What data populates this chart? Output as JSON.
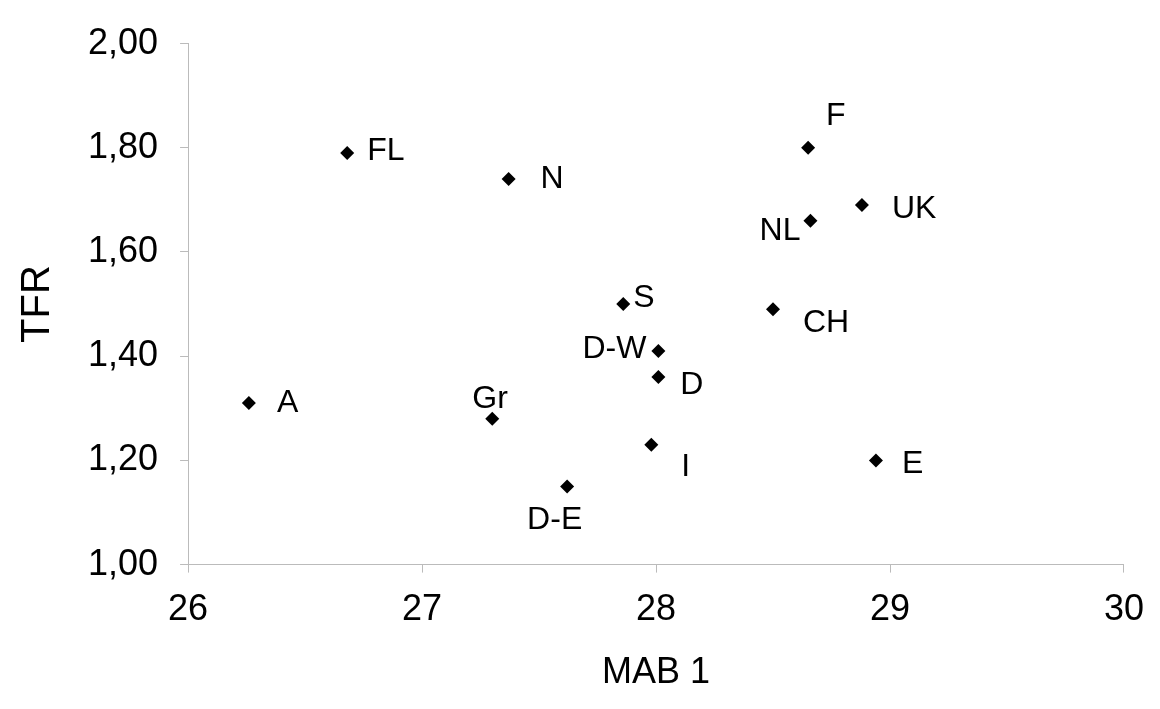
{
  "chart_data": {
    "type": "scatter",
    "xlabel": "MAB 1",
    "ylabel": "TFR",
    "x": [
      26.26,
      26.68,
      27.37,
      28.65,
      28.88,
      28.66,
      27.86,
      28.5,
      28.01,
      28.01,
      27.3,
      27.98,
      28.94,
      27.62
    ],
    "values": [
      1.31,
      1.79,
      1.74,
      1.8,
      1.69,
      1.66,
      1.5,
      1.49,
      1.41,
      1.36,
      1.28,
      1.23,
      1.2,
      1.15
    ],
    "color": "#000000",
    "marker": "diamond",
    "grid": false,
    "legend": false,
    "xlim": [
      26,
      30
    ],
    "xticks": [
      26,
      27,
      28,
      29,
      30
    ],
    "ylim": [
      1,
      2
    ],
    "yticks": [
      {
        "value": 1,
        "label": "1,00"
      },
      {
        "value": 1.2,
        "label": "1,20"
      },
      {
        "value": 1.4,
        "label": "1,40"
      },
      {
        "value": 1.6,
        "label": "1,60"
      },
      {
        "value": 1.8,
        "label": "1,80"
      },
      {
        "value": 2,
        "label": "2,00"
      }
    ],
    "annotations": [
      {
        "text": "A",
        "x": 26.26,
        "y": 1.31
      },
      {
        "text": "FL",
        "x": 26.68,
        "y": 1.79
      },
      {
        "text": "N",
        "x": 27.37,
        "y": 1.74
      },
      {
        "text": "F",
        "x": 28.65,
        "y": 1.8
      },
      {
        "text": "UK",
        "x": 28.88,
        "y": 1.69
      },
      {
        "text": "NL",
        "x": 28.66,
        "y": 1.66
      },
      {
        "text": "S",
        "x": 27.86,
        "y": 1.5
      },
      {
        "text": "CH",
        "x": 28.5,
        "y": 1.49
      },
      {
        "text": "D-W",
        "x": 28.01,
        "y": 1.41
      },
      {
        "text": "D",
        "x": 28.01,
        "y": 1.36
      },
      {
        "text": "Gr",
        "x": 27.3,
        "y": 1.28
      },
      {
        "text": "I",
        "x": 27.98,
        "y": 1.23
      },
      {
        "text": "E",
        "x": 28.94,
        "y": 1.2
      },
      {
        "text": "D-E",
        "x": 27.62,
        "y": 1.15
      }
    ]
  }
}
